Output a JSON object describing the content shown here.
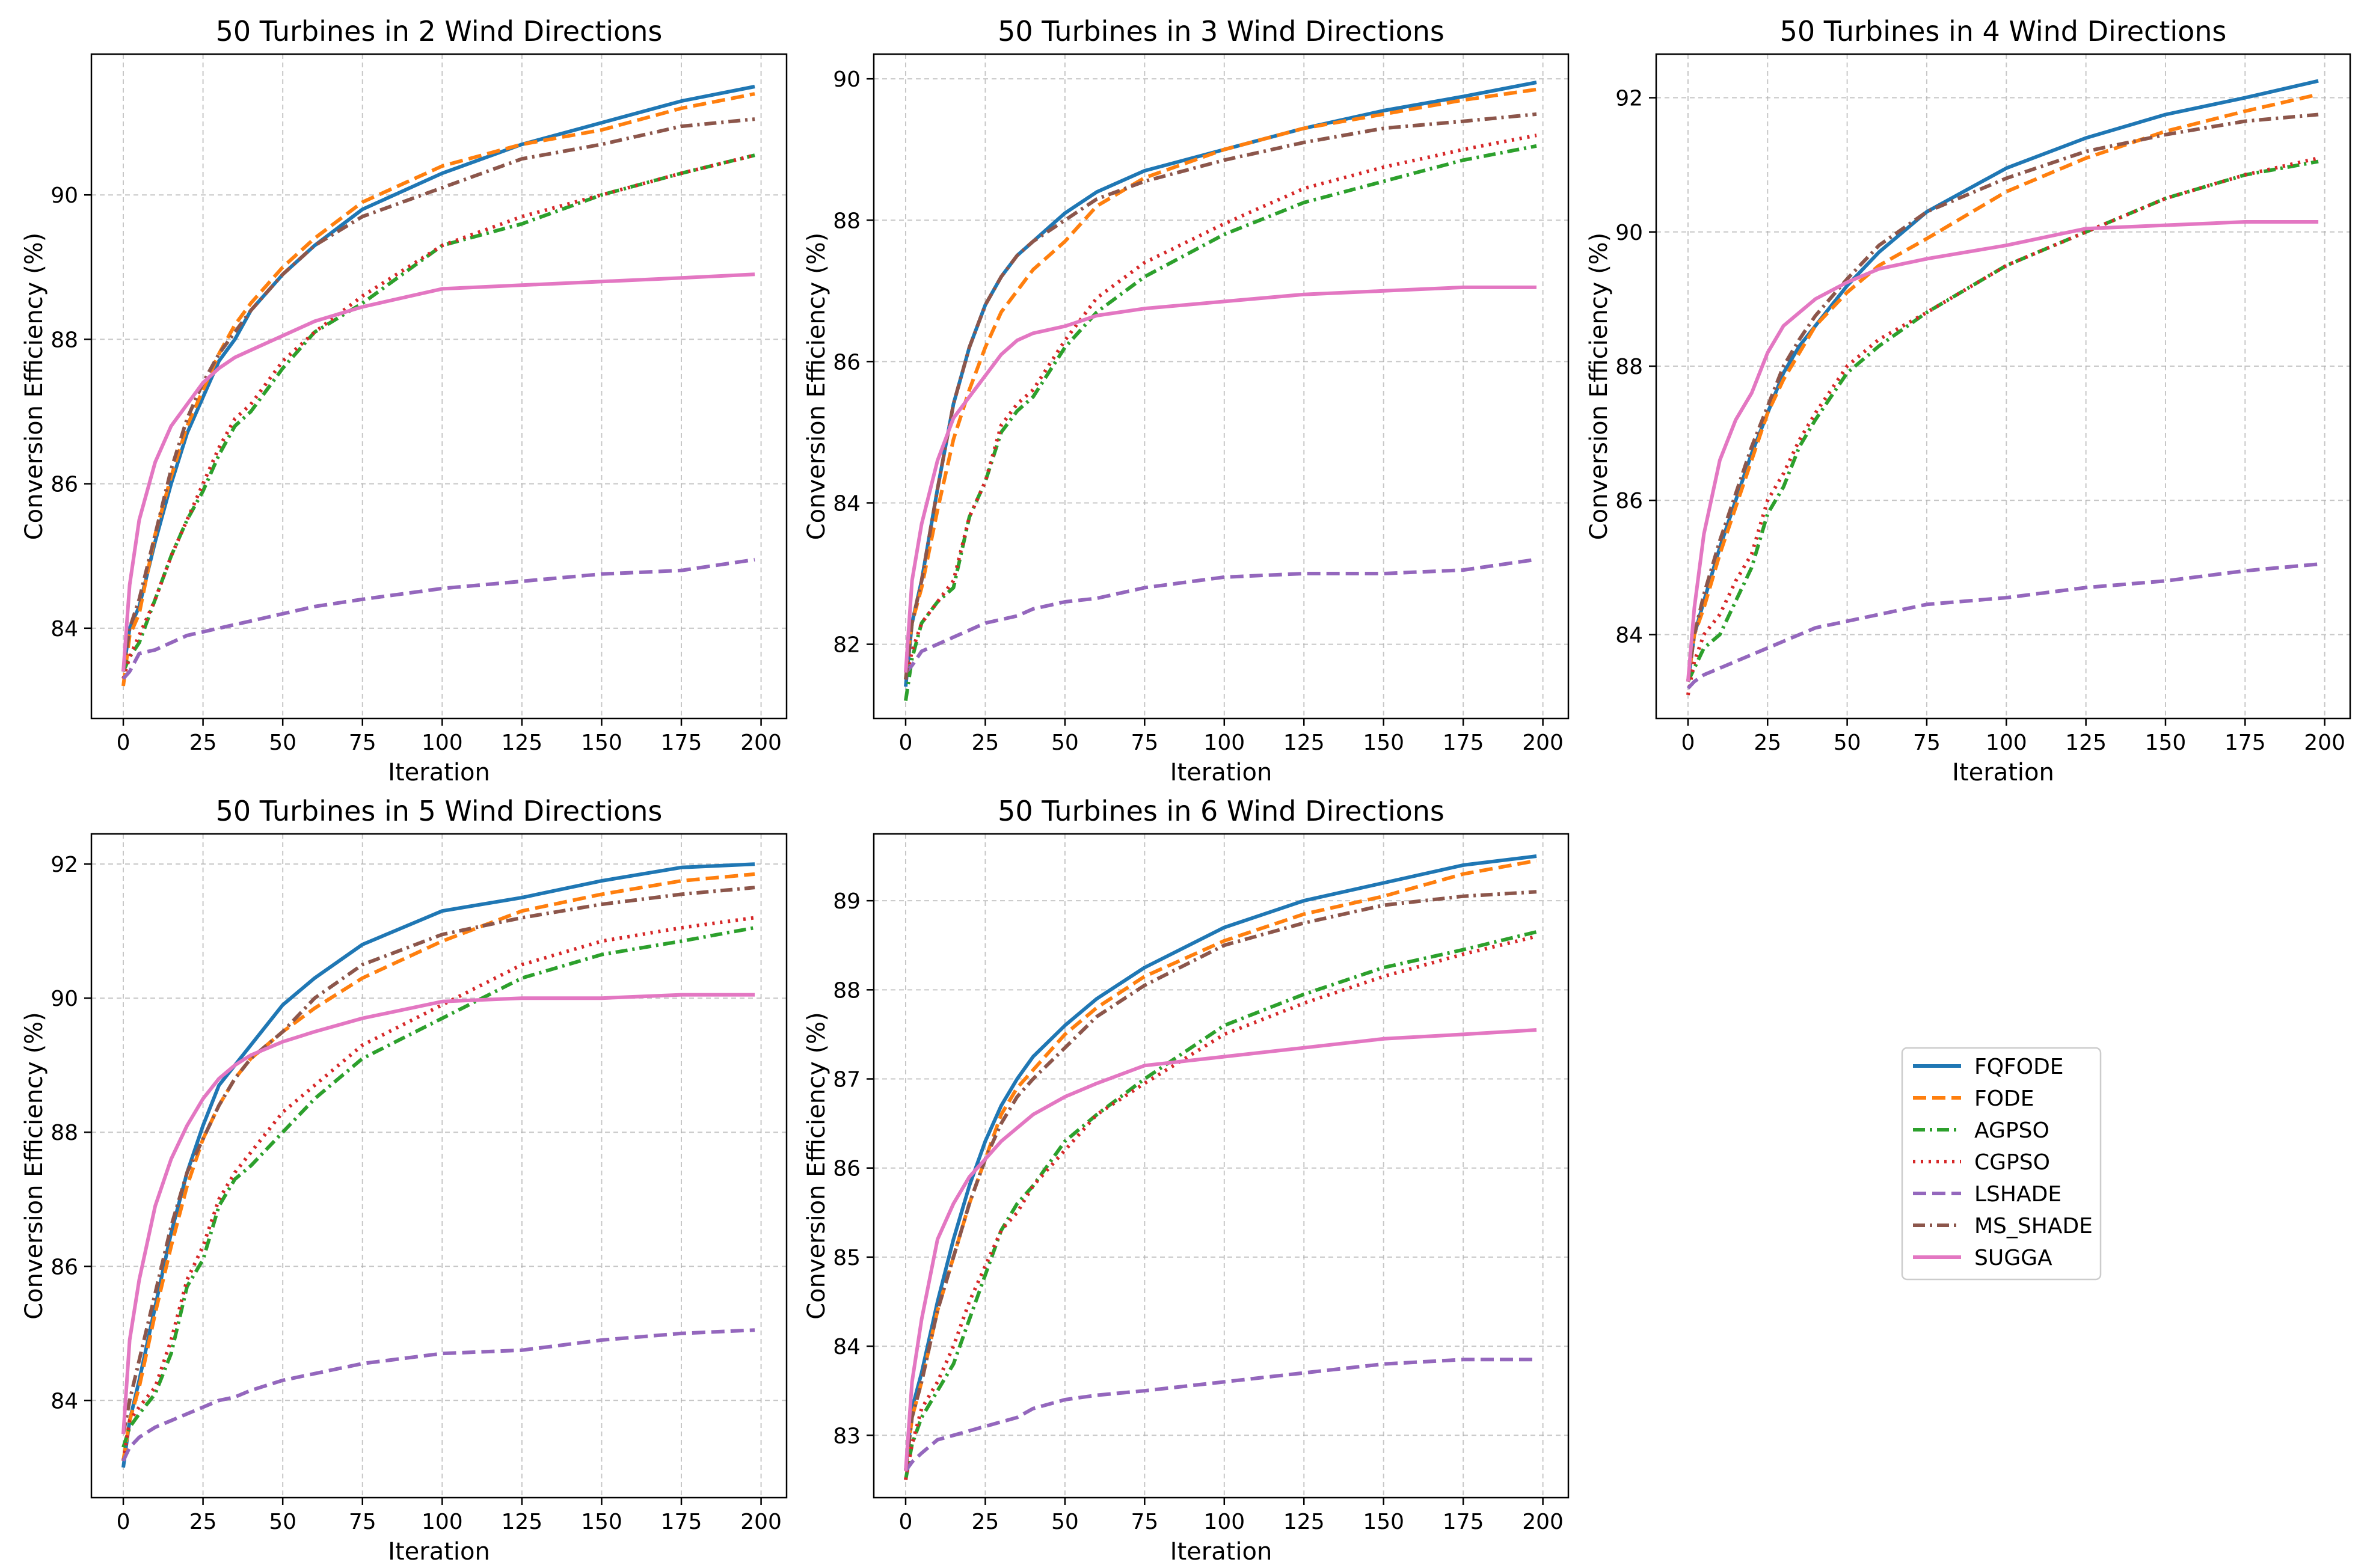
{
  "chart_data": {
    "type": "line",
    "legend": {
      "placement": "center-right (empty sixth panel)",
      "entries": [
        "FQFODE",
        "FODE",
        "AGPSO",
        "CGPSO",
        "LSHADE",
        "MS_SHADE",
        "SUGGA"
      ]
    },
    "series_styles": [
      {
        "name": "FQFODE",
        "color": "#1f77b4",
        "dash": "solid"
      },
      {
        "name": "FODE",
        "color": "#ff7f0e",
        "dash": "dashed"
      },
      {
        "name": "AGPSO",
        "color": "#2ca02c",
        "dash": "dashdot"
      },
      {
        "name": "CGPSO",
        "color": "#d62728",
        "dash": "dotted"
      },
      {
        "name": "LSHADE",
        "color": "#9467bd",
        "dash": "dashed"
      },
      {
        "name": "MS_SHADE",
        "color": "#8c564b",
        "dash": "dashdot"
      },
      {
        "name": "SUGGA",
        "color": "#e377c2",
        "dash": "solid"
      }
    ],
    "x": [
      0,
      2,
      5,
      10,
      15,
      20,
      25,
      30,
      35,
      40,
      50,
      60,
      75,
      100,
      125,
      150,
      175,
      198
    ],
    "xlim": [
      -10,
      208
    ],
    "xticks": [
      0,
      25,
      50,
      75,
      100,
      125,
      150,
      175,
      200
    ],
    "xlabel": "Iteration",
    "ylabel": "Conversion Efficiency (%)",
    "grid": true,
    "panels": [
      {
        "title": "50 Turbines in 2 Wind Directions",
        "ylim": [
          82.75,
          91.95
        ],
        "yticks": [
          84,
          86,
          88,
          90
        ],
        "series": [
          {
            "name": "FQFODE",
            "values": [
              83.4,
              84.0,
              84.3,
              85.2,
              86.0,
              86.7,
              87.2,
              87.7,
              88.0,
              88.4,
              88.9,
              89.3,
              89.8,
              90.3,
              90.7,
              91.0,
              91.3,
              91.5
            ]
          },
          {
            "name": "FODE",
            "values": [
              83.2,
              83.9,
              84.2,
              85.3,
              86.1,
              86.8,
              87.3,
              87.8,
              88.2,
              88.5,
              89.0,
              89.4,
              89.9,
              90.4,
              90.7,
              90.9,
              91.2,
              91.4
            ]
          },
          {
            "name": "AGPSO",
            "values": [
              83.4,
              83.6,
              83.8,
              84.4,
              85.0,
              85.5,
              85.9,
              86.4,
              86.8,
              87.0,
              87.6,
              88.1,
              88.5,
              89.3,
              89.6,
              90.0,
              90.3,
              90.55
            ]
          },
          {
            "name": "CGPSO",
            "values": [
              83.3,
              83.6,
              83.9,
              84.4,
              85.0,
              85.5,
              86.0,
              86.5,
              86.9,
              87.1,
              87.7,
              88.1,
              88.6,
              89.3,
              89.7,
              90.0,
              90.3,
              90.55
            ]
          },
          {
            "name": "LSHADE",
            "values": [
              83.3,
              83.4,
              83.65,
              83.7,
              83.8,
              83.9,
              83.95,
              84.0,
              84.05,
              84.1,
              84.2,
              84.3,
              84.4,
              84.55,
              84.65,
              84.75,
              84.8,
              84.95
            ]
          },
          {
            "name": "MS_SHADE",
            "values": [
              83.4,
              84.0,
              84.4,
              85.3,
              86.2,
              86.9,
              87.4,
              87.8,
              88.1,
              88.4,
              88.9,
              89.3,
              89.7,
              90.1,
              90.5,
              90.7,
              90.95,
              91.05
            ]
          },
          {
            "name": "SUGGA",
            "values": [
              83.4,
              84.6,
              85.5,
              86.3,
              86.8,
              87.1,
              87.4,
              87.6,
              87.75,
              87.85,
              88.05,
              88.25,
              88.45,
              88.7,
              88.75,
              88.8,
              88.85,
              88.9
            ]
          }
        ]
      },
      {
        "title": "50 Turbines in 3 Wind Directions",
        "ylim": [
          80.95,
          90.35
        ],
        "yticks": [
          82,
          84,
          86,
          88,
          90
        ],
        "series": [
          {
            "name": "FQFODE",
            "values": [
              81.4,
              82.3,
              82.9,
              84.2,
              85.4,
              86.2,
              86.8,
              87.2,
              87.5,
              87.7,
              88.1,
              88.4,
              88.7,
              89.0,
              89.3,
              89.55,
              89.75,
              89.95
            ]
          },
          {
            "name": "FODE",
            "values": [
              81.6,
              82.3,
              82.8,
              83.9,
              84.9,
              85.6,
              86.2,
              86.7,
              87.0,
              87.3,
              87.7,
              88.2,
              88.6,
              89.0,
              89.3,
              89.5,
              89.7,
              89.85
            ]
          },
          {
            "name": "AGPSO",
            "values": [
              81.2,
              81.8,
              82.3,
              82.6,
              82.8,
              83.8,
              84.3,
              85.0,
              85.3,
              85.5,
              86.2,
              86.7,
              87.2,
              87.8,
              88.25,
              88.55,
              88.85,
              89.05
            ]
          },
          {
            "name": "CGPSO",
            "values": [
              81.5,
              81.9,
              82.3,
              82.6,
              82.9,
              83.8,
              84.3,
              85.1,
              85.4,
              85.6,
              86.3,
              86.9,
              87.4,
              87.95,
              88.45,
              88.75,
              89.0,
              89.2
            ]
          },
          {
            "name": "LSHADE",
            "values": [
              81.6,
              81.7,
              81.9,
              82.0,
              82.1,
              82.2,
              82.3,
              82.35,
              82.4,
              82.5,
              82.6,
              82.65,
              82.8,
              82.95,
              83.0,
              83.0,
              83.05,
              83.2
            ]
          },
          {
            "name": "MS_SHADE",
            "values": [
              81.5,
              82.3,
              82.9,
              84.2,
              85.4,
              86.2,
              86.8,
              87.2,
              87.5,
              87.7,
              88.0,
              88.3,
              88.55,
              88.85,
              89.1,
              89.3,
              89.4,
              89.5
            ]
          },
          {
            "name": "SUGGA",
            "values": [
              81.6,
              82.9,
              83.7,
              84.6,
              85.2,
              85.5,
              85.8,
              86.1,
              86.3,
              86.4,
              86.5,
              86.65,
              86.75,
              86.85,
              86.95,
              87.0,
              87.05,
              87.05
            ]
          }
        ]
      },
      {
        "title": "50 Turbines in 4 Wind Directions",
        "ylim": [
          82.75,
          92.65
        ],
        "yticks": [
          84,
          86,
          88,
          90,
          92
        ],
        "series": [
          {
            "name": "FQFODE",
            "values": [
              83.3,
              84.0,
              84.5,
              85.3,
              86.0,
              86.7,
              87.3,
              87.9,
              88.3,
              88.6,
              89.2,
              89.7,
              90.3,
              90.95,
              91.4,
              91.75,
              92.0,
              92.25
            ]
          },
          {
            "name": "FODE",
            "values": [
              83.3,
              84.0,
              84.4,
              85.2,
              85.9,
              86.6,
              87.3,
              87.8,
              88.2,
              88.6,
              89.1,
              89.5,
              89.9,
              90.6,
              91.1,
              91.5,
              91.8,
              92.05
            ]
          },
          {
            "name": "AGPSO",
            "values": [
              83.3,
              83.5,
              83.8,
              84.0,
              84.5,
              85.0,
              85.8,
              86.2,
              86.8,
              87.2,
              87.9,
              88.3,
              88.8,
              89.5,
              90.0,
              90.5,
              90.85,
              91.05
            ]
          },
          {
            "name": "CGPSO",
            "values": [
              83.1,
              83.6,
              84.0,
              84.3,
              84.8,
              85.2,
              86.0,
              86.4,
              86.9,
              87.3,
              88.0,
              88.4,
              88.8,
              89.5,
              90.0,
              90.5,
              90.85,
              91.1
            ]
          },
          {
            "name": "LSHADE",
            "values": [
              83.2,
              83.3,
              83.4,
              83.5,
              83.6,
              83.7,
              83.8,
              83.9,
              84.0,
              84.1,
              84.2,
              84.3,
              84.45,
              84.55,
              84.7,
              84.8,
              84.95,
              85.05
            ]
          },
          {
            "name": "MS_SHADE",
            "values": [
              83.3,
              84.0,
              84.6,
              85.4,
              86.1,
              86.8,
              87.4,
              88.0,
              88.4,
              88.75,
              89.3,
              89.8,
              90.3,
              90.8,
              91.2,
              91.45,
              91.65,
              91.75
            ]
          },
          {
            "name": "SUGGA",
            "values": [
              83.3,
              84.4,
              85.5,
              86.6,
              87.2,
              87.6,
              88.2,
              88.6,
              88.8,
              89.0,
              89.25,
              89.45,
              89.6,
              89.8,
              90.05,
              90.1,
              90.15,
              90.15
            ]
          }
        ]
      },
      {
        "title": "50 Turbines in 5 Wind Directions",
        "ylim": [
          82.55,
          92.45
        ],
        "yticks": [
          84,
          86,
          88,
          90,
          92
        ],
        "series": [
          {
            "name": "FQFODE",
            "values": [
              83.0,
              83.7,
              84.3,
              85.4,
              86.5,
              87.4,
              88.1,
              88.7,
              89.0,
              89.3,
              89.9,
              90.3,
              90.8,
              91.3,
              91.5,
              91.75,
              91.95,
              92.0
            ]
          },
          {
            "name": "FODE",
            "values": [
              83.1,
              83.7,
              84.2,
              85.3,
              86.3,
              87.2,
              87.9,
              88.4,
              88.8,
              89.1,
              89.5,
              89.85,
              90.3,
              90.85,
              91.3,
              91.55,
              91.75,
              91.85
            ]
          },
          {
            "name": "AGPSO",
            "values": [
              83.3,
              83.6,
              83.8,
              84.1,
              84.7,
              85.7,
              86.1,
              86.9,
              87.3,
              87.5,
              88.0,
              88.5,
              89.1,
              89.7,
              90.3,
              90.65,
              90.85,
              91.05
            ]
          },
          {
            "name": "CGPSO",
            "values": [
              83.1,
              83.7,
              83.9,
              84.2,
              84.9,
              85.8,
              86.3,
              87.0,
              87.4,
              87.7,
              88.3,
              88.7,
              89.3,
              89.9,
              90.5,
              90.85,
              91.05,
              91.2
            ]
          },
          {
            "name": "LSHADE",
            "values": [
              83.1,
              83.3,
              83.45,
              83.6,
              83.7,
              83.8,
              83.9,
              84.0,
              84.05,
              84.15,
              84.3,
              84.4,
              84.55,
              84.7,
              84.75,
              84.9,
              85.0,
              85.05
            ]
          },
          {
            "name": "MS_SHADE",
            "values": [
              83.5,
              84.0,
              84.6,
              85.6,
              86.6,
              87.4,
              87.9,
              88.4,
              88.8,
              89.1,
              89.5,
              90.0,
              90.5,
              90.95,
              91.2,
              91.4,
              91.55,
              91.65
            ]
          },
          {
            "name": "SUGGA",
            "values": [
              83.5,
              84.9,
              85.8,
              86.9,
              87.6,
              88.1,
              88.5,
              88.8,
              89.0,
              89.15,
              89.35,
              89.5,
              89.7,
              89.95,
              90.0,
              90.0,
              90.05,
              90.05
            ]
          }
        ]
      },
      {
        "title": "50 Turbines in 6 Wind Directions",
        "ylim": [
          82.3,
          89.75
        ],
        "yticks": [
          83,
          84,
          85,
          86,
          87,
          88,
          89
        ],
        "series": [
          {
            "name": "FQFODE",
            "values": [
              82.6,
              83.3,
              83.7,
              84.5,
              85.2,
              85.8,
              86.3,
              86.7,
              87.0,
              87.25,
              87.6,
              87.9,
              88.25,
              88.7,
              89.0,
              89.2,
              89.4,
              89.5
            ]
          },
          {
            "name": "FODE",
            "values": [
              82.6,
              83.2,
              83.6,
              84.4,
              85.0,
              85.6,
              86.1,
              86.6,
              86.9,
              87.1,
              87.5,
              87.8,
              88.15,
              88.55,
              88.85,
              89.05,
              89.3,
              89.45
            ]
          },
          {
            "name": "AGPSO",
            "values": [
              82.5,
              82.9,
              83.2,
              83.5,
              83.8,
              84.3,
              84.8,
              85.3,
              85.6,
              85.8,
              86.3,
              86.6,
              87.0,
              87.6,
              87.95,
              88.25,
              88.45,
              88.65
            ]
          },
          {
            "name": "CGPSO",
            "values": [
              82.5,
              82.9,
              83.3,
              83.6,
              84.0,
              84.5,
              84.9,
              85.3,
              85.5,
              85.8,
              86.2,
              86.6,
              86.95,
              87.5,
              87.85,
              88.15,
              88.4,
              88.6
            ]
          },
          {
            "name": "LSHADE",
            "values": [
              82.6,
              82.7,
              82.8,
              82.95,
              83.0,
              83.05,
              83.1,
              83.15,
              83.2,
              83.3,
              83.4,
              83.45,
              83.5,
              83.6,
              83.7,
              83.8,
              83.85,
              83.85
            ]
          },
          {
            "name": "MS_SHADE",
            "values": [
              82.6,
              83.2,
              83.6,
              84.4,
              85.0,
              85.6,
              86.1,
              86.5,
              86.8,
              87.0,
              87.35,
              87.7,
              88.05,
              88.5,
              88.75,
              88.95,
              89.05,
              89.1
            ]
          },
          {
            "name": "SUGGA",
            "values": [
              82.6,
              83.6,
              84.3,
              85.2,
              85.6,
              85.9,
              86.1,
              86.3,
              86.45,
              86.6,
              86.8,
              86.95,
              87.15,
              87.25,
              87.35,
              87.45,
              87.5,
              87.55
            ]
          }
        ]
      }
    ]
  }
}
